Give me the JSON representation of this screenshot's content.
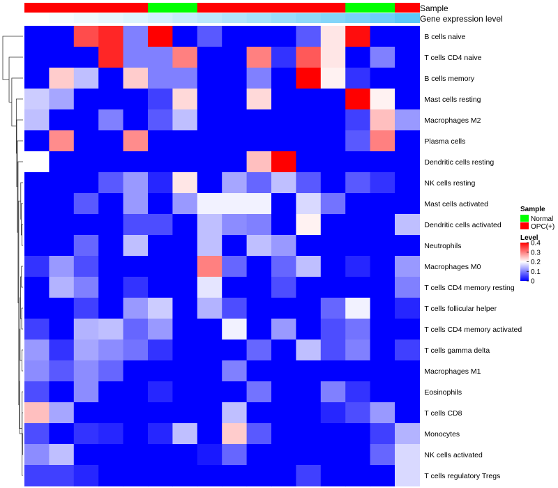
{
  "chart_data": {
    "type": "heatmap",
    "annotation_labels": {
      "sample": "Sample",
      "expression": "Gene expression level"
    },
    "sample_groups": [
      "OPC(+)",
      "OPC(+)",
      "OPC(+)",
      "OPC(+)",
      "OPC(+)",
      "Normal",
      "Normal",
      "OPC(+)",
      "OPC(+)",
      "OPC(+)",
      "OPC(+)",
      "OPC(+)",
      "OPC(+)",
      "Normal",
      "Normal",
      "OPC(+)"
    ],
    "gene_expression_level": [
      0.02,
      0.05,
      0.08,
      0.11,
      0.14,
      0.18,
      0.22,
      0.26,
      0.3,
      0.34,
      0.38,
      0.42,
      0.46,
      0.5,
      0.54,
      0.6
    ],
    "rows": [
      "B cells naive",
      "T cells CD4 naive",
      "B cells memory",
      "Mast cells resting",
      "Macrophages M2",
      "Plasma cells",
      "Dendritic cells resting",
      "NK cells resting",
      "Mast cells activated",
      "Dendritic cells activated",
      "Neutrophils",
      "Macrophages M0",
      "T cells CD4 memory resting",
      "T cells follicular helper",
      "T cells CD4 memory activated",
      "T cells gamma delta",
      "Macrophages M1",
      "Eosinophils",
      "T cells CD8",
      "Monocytes",
      "NK cells activated",
      "T cells regulatory  Tregs"
    ],
    "values": [
      [
        0,
        0,
        0.34,
        0.37,
        0.1,
        0.4,
        0,
        0.07,
        0,
        0,
        0,
        0.07,
        0.22,
        0.39,
        0,
        0
      ],
      [
        0,
        0,
        0,
        0.37,
        0.1,
        0.1,
        0.3,
        0,
        0,
        0.3,
        0.04,
        0.33,
        0.22,
        0,
        0.1,
        0
      ],
      [
        0,
        0.24,
        0.15,
        0,
        0.24,
        0.1,
        0.1,
        0,
        0,
        0.1,
        0,
        0.4,
        0.21,
        0.04,
        0,
        0
      ],
      [
        0.16,
        0.13,
        0,
        0,
        0,
        0.05,
        0.23,
        0,
        0,
        0.23,
        0,
        0,
        0,
        0.4,
        0.21,
        0
      ],
      [
        0.15,
        0,
        0,
        0.1,
        0,
        0.07,
        0.15,
        0,
        0,
        0,
        0,
        0,
        0,
        0.05,
        0.25,
        0.12
      ],
      [
        0,
        0.29,
        0,
        0,
        0.29,
        0,
        0,
        0,
        0,
        0,
        0,
        0,
        0,
        0.07,
        0.3,
        0
      ],
      [
        0.2,
        0,
        0,
        0,
        0,
        0,
        0,
        0,
        0,
        0.25,
        0.4,
        0,
        0,
        0,
        0,
        0
      ],
      [
        0,
        0,
        0,
        0.07,
        0.12,
        0.03,
        0.22,
        0,
        0.13,
        0.08,
        0.15,
        0.07,
        0,
        0.07,
        0.04,
        0
      ],
      [
        0,
        0,
        0.07,
        0,
        0.12,
        0,
        0.12,
        0.19,
        0.19,
        0.19,
        0,
        0.17,
        0.09,
        0,
        0,
        0
      ],
      [
        0,
        0,
        0,
        0,
        0.06,
        0.06,
        0,
        0.15,
        0.11,
        0.1,
        0,
        0.21,
        0,
        0,
        0,
        0.15
      ],
      [
        0,
        0,
        0.08,
        0,
        0.15,
        0,
        0,
        0.15,
        0,
        0.15,
        0.12,
        0,
        0,
        0,
        0,
        0
      ],
      [
        0.04,
        0.12,
        0.06,
        0,
        0,
        0,
        0,
        0.3,
        0.08,
        0,
        0.08,
        0.15,
        0,
        0.03,
        0,
        0.12
      ],
      [
        0,
        0.14,
        0.1,
        0,
        0.04,
        0,
        0,
        0.18,
        0,
        0,
        0.06,
        0,
        0,
        0,
        0,
        0.1
      ],
      [
        0,
        0,
        0.05,
        0,
        0.12,
        0.16,
        0,
        0.14,
        0.06,
        0,
        0,
        0,
        0.08,
        0.19,
        0,
        0.03
      ],
      [
        0.05,
        0,
        0.14,
        0.15,
        0.08,
        0.12,
        0,
        0,
        0.19,
        0,
        0.12,
        0,
        0.06,
        0.09,
        0,
        0
      ],
      [
        0.12,
        0.04,
        0.13,
        0.11,
        0.09,
        0.04,
        0,
        0,
        0,
        0.08,
        0,
        0.15,
        0.06,
        0.1,
        0,
        0.05
      ],
      [
        0.11,
        0.07,
        0.11,
        0.08,
        0,
        0,
        0,
        0,
        0.1,
        0,
        0,
        0,
        0,
        0,
        0,
        0
      ],
      [
        0.06,
        0,
        0.11,
        0,
        0,
        0.03,
        0,
        0,
        0,
        0.09,
        0,
        0,
        0.1,
        0.04,
        0,
        0
      ],
      [
        0.25,
        0.13,
        0,
        0,
        0,
        0,
        0,
        0,
        0.15,
        0,
        0,
        0,
        0.03,
        0.06,
        0.12,
        0
      ],
      [
        0.06,
        0,
        0.04,
        0.03,
        0,
        0.03,
        0.15,
        0,
        0.24,
        0.07,
        0,
        0,
        0,
        0,
        0.05,
        0.14
      ],
      [
        0.11,
        0.15,
        0,
        0,
        0,
        0,
        0,
        0.02,
        0.08,
        0,
        0,
        0,
        0,
        0,
        0.08,
        0.17
      ],
      [
        0.05,
        0.05,
        0.03,
        0,
        0,
        0,
        0,
        0,
        0,
        0,
        0,
        0.05,
        0,
        0,
        0,
        0.17
      ]
    ],
    "row_dendrogram": {
      "merges": [
        [
          -20,
          -21
        ],
        [
          -19,
          1
        ],
        [
          -18,
          -22
        ],
        [
          -16,
          -17
        ],
        [
          -14,
          -15
        ],
        [
          -12,
          -13
        ],
        [
          -10,
          -11
        ],
        [
          -9,
          7
        ],
        [
          -8,
          8
        ],
        [
          5,
          6
        ],
        [
          4,
          10
        ],
        [
          3,
          11
        ],
        [
          2,
          12
        ],
        [
          9,
          13
        ],
        [
          -7,
          14
        ],
        [
          -6,
          15
        ],
        [
          -5,
          16
        ],
        [
          -4,
          17
        ],
        [
          -3,
          18
        ],
        [
          -2,
          19
        ],
        [
          -1,
          20
        ]
      ],
      "heights": [
        0.02,
        0.04,
        0.04,
        0.05,
        0.06,
        0.07,
        0.05,
        0.08,
        0.1,
        0.11,
        0.13,
        0.15,
        0.17,
        0.19,
        0.22,
        0.25,
        0.28,
        0.3,
        0.5,
        0.62,
        0.9
      ]
    },
    "legend": {
      "sample_title": "Sample",
      "sample_items": [
        {
          "label": "Normal",
          "color": "#00ff00"
        },
        {
          "label": "OPC(+)",
          "color": "#ff0000"
        }
      ],
      "level_title": "Level",
      "level_ticks": [
        0.4,
        0.3,
        0.2,
        0.1,
        0
      ],
      "level_range": [
        0,
        0.4
      ],
      "colors": {
        "low": "#0000ff",
        "mid": "#ffffff",
        "high": "#ff0000",
        "mid_value": 0.2
      }
    },
    "expression_colors": {
      "low": "#ffffff",
      "high": "#5bc8f7"
    }
  }
}
